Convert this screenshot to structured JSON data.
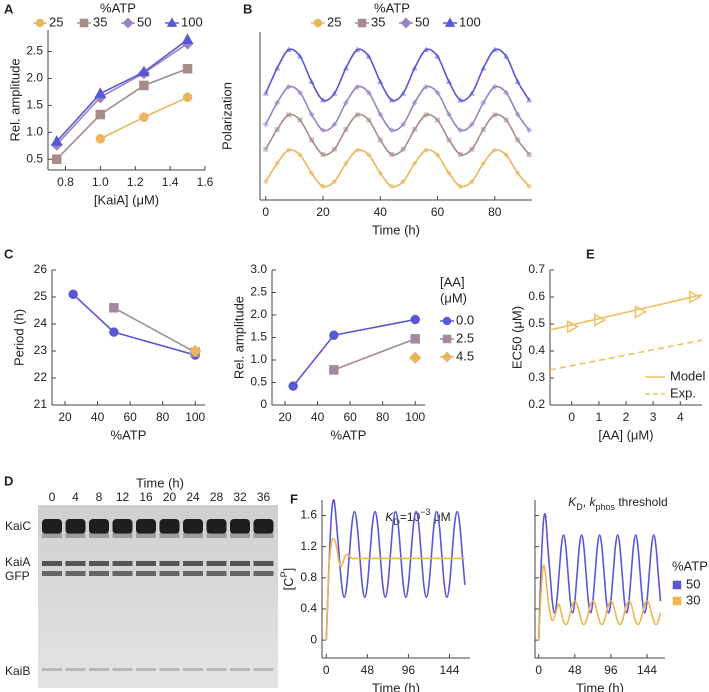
{
  "chart_data": [
    {
      "type": "line",
      "panel_label": "A",
      "xlabel": "[KaiA] (μM)",
      "ylabel": "Rel. amplitude",
      "xlim": [
        0.7,
        1.6
      ],
      "xticks": [
        0.8,
        {
          "value": 1,
          "label": "1.0"
        },
        1.2,
        1.4,
        1.6
      ],
      "ylim": [
        0.3,
        2.9
      ],
      "yticks": [
        0.5,
        {
          "value": 1,
          "label": "1.0"
        },
        1.5,
        {
          "value": 2,
          "label": "2.0"
        },
        2.5
      ],
      "legend": {
        "title": "%ATP",
        "position": "top"
      },
      "series": [
        {
          "name": "25",
          "color": "#e9b65d",
          "marker": "circle",
          "x": [
            1,
            1.25,
            1.5
          ],
          "values": [
            0.88,
            1.28,
            1.65
          ]
        },
        {
          "name": "35",
          "color": "#a88b8b",
          "marker": "square",
          "x": [
            0.75,
            1,
            1.25,
            1.5
          ],
          "values": [
            0.5,
            1.33,
            1.87,
            2.18
          ]
        },
        {
          "name": "50",
          "color": "#9a82c4",
          "marker": "diamond",
          "x": [
            0.75,
            1,
            1.25,
            1.5
          ],
          "values": [
            0.77,
            1.65,
            2.1,
            2.65
          ]
        },
        {
          "name": "100",
          "color": "#5a57d6",
          "marker": "triangle",
          "x": [
            0.75,
            1,
            1.25,
            1.5
          ],
          "values": [
            0.83,
            1.72,
            2.12,
            2.72
          ]
        }
      ]
    },
    {
      "type": "line",
      "panel_label": "B",
      "xlabel": "Time (h)",
      "ylabel": "Polarization",
      "smooth": true,
      "xlim": [
        -2,
        93
      ],
      "xticks": [
        0,
        20,
        40,
        60,
        80
      ],
      "ylim": [
        0.3,
        9.3
      ],
      "legend": {
        "title": "%ATP",
        "position": "top"
      },
      "x": [
        0,
        4,
        8,
        12,
        16,
        20,
        24,
        28,
        32,
        36,
        40,
        44,
        48,
        52,
        56,
        60,
        64,
        68,
        72,
        76,
        80,
        84,
        88,
        92
      ],
      "series": [
        {
          "name": "25",
          "color": "#e9b65d",
          "marker": "circle",
          "values": [
            1.29,
            2.26,
            2.97,
            2.71,
            1.74,
            1.03,
            1.29,
            2.26,
            2.97,
            2.71,
            1.74,
            1.03,
            1.29,
            2.26,
            2.97,
            2.71,
            1.74,
            1.03,
            1.29,
            2.26,
            2.97,
            2.71,
            1.74,
            1.03
          ]
        },
        {
          "name": "35",
          "color": "#a88b8b",
          "marker": "square",
          "values": [
            3.02,
            4.08,
            4.86,
            4.58,
            3.52,
            2.74,
            3.02,
            4.08,
            4.86,
            4.58,
            3.52,
            2.74,
            3.02,
            4.08,
            4.86,
            4.58,
            3.52,
            2.74,
            3.02,
            4.08,
            4.86,
            4.58,
            3.52,
            2.74
          ]
        },
        {
          "name": "50",
          "color": "#9a82c4",
          "marker": "diamond",
          "values": [
            4.35,
            5.51,
            6.36,
            6.05,
            4.89,
            4.04,
            4.35,
            5.51,
            6.36,
            6.05,
            4.89,
            4.04,
            4.35,
            5.51,
            6.36,
            6.05,
            4.89,
            4.04,
            4.35,
            5.51,
            6.36,
            6.05,
            4.89,
            4.04
          ]
        },
        {
          "name": "100",
          "color": "#5a57d6",
          "marker": "triangle",
          "values": [
            6.01,
            7.36,
            8.35,
            7.99,
            6.64,
            5.65,
            6.01,
            7.36,
            8.35,
            7.99,
            6.64,
            5.65,
            6.01,
            7.36,
            8.35,
            7.99,
            6.64,
            5.65,
            6.01,
            7.36,
            8.35,
            7.99,
            6.64,
            5.65
          ]
        }
      ]
    },
    {
      "type": "line",
      "panel_label": "C",
      "xlabel": "%ATP",
      "ylabel": "Period (h)",
      "xlim": [
        12,
        106
      ],
      "xticks": [
        20,
        40,
        60,
        80,
        100
      ],
      "ylim": [
        21,
        26
      ],
      "yticks": [
        21,
        22,
        23,
        24,
        25,
        26
      ],
      "series": [
        {
          "color": "#5a57d6",
          "marker": "circle",
          "x": [
            25,
            50,
            100
          ],
          "values": [
            25.1,
            23.7,
            22.85
          ]
        },
        {
          "color": "#a5899a",
          "marker": "square",
          "x": [
            50,
            100
          ],
          "values": [
            24.6,
            22.95
          ]
        },
        {
          "color": "#e9b65d",
          "marker": "diamond",
          "x": [
            100
          ],
          "values": [
            23.0
          ]
        }
      ]
    },
    {
      "type": "line",
      "xlabel": "%ATP",
      "ylabel": "Rel. amplitude",
      "xlim": [
        12,
        106
      ],
      "xticks": [
        20,
        40,
        60,
        80,
        100
      ],
      "ylim": [
        0,
        3
      ],
      "yticks": [
        0,
        0.5,
        {
          "value": 1,
          "label": "1.0"
        },
        1.5,
        {
          "value": 2,
          "label": "2.0"
        },
        2.5,
        {
          "value": 3,
          "label": "3.0"
        }
      ],
      "legend": {
        "title": [
          "[AA]",
          "(μM)"
        ],
        "position": "right"
      },
      "series": [
        {
          "name": "0.0",
          "color": "#5a57d6",
          "marker": "circle",
          "x": [
            25,
            50,
            100
          ],
          "values": [
            0.42,
            1.55,
            1.9
          ]
        },
        {
          "name": "2.5",
          "color": "#a5899a",
          "marker": "square",
          "x": [
            50,
            100
          ],
          "values": [
            0.78,
            1.47
          ]
        },
        {
          "name": "4.5",
          "color": "#e9b65d",
          "marker": "diamond",
          "x": [
            100
          ],
          "values": [
            1.05
          ]
        }
      ]
    },
    {
      "type": "line",
      "panel_label": "E",
      "xlabel": "[AA] (μM)",
      "ylabel": "EC50 (μM)",
      "xlim": [
        -0.8,
        4.8
      ],
      "xticks": [
        0,
        1,
        2,
        3,
        4
      ],
      "ylim": [
        0.2,
        0.7
      ],
      "yticks": [
        0.2,
        0.3,
        0.4,
        0.5,
        0.6,
        0.7
      ],
      "legend": {
        "position": "bottom-right"
      },
      "series": [
        {
          "name": "Model",
          "color": "#f0c060",
          "marker": "triangle-right",
          "marker_fill": "none",
          "x": [
            -0.8,
            4.8
          ],
          "values": [
            0.478,
            0.608
          ],
          "points": {
            "x": [
              0,
              1,
              2.5,
              4.5
            ],
            "values": [
              0.49,
              0.515,
              0.545,
              0.6
            ]
          }
        },
        {
          "name": "Exp.",
          "color": "#f0c060",
          "dash": true,
          "x": [
            -0.8,
            4.8
          ],
          "values": [
            0.33,
            0.44
          ]
        }
      ]
    },
    {
      "type": "line",
      "panel_label": "F",
      "xlabel": "Time (h)",
      "smooth": true,
      "ylabel_parts": [
        {
          "text": "[C"
        },
        {
          "text": "P",
          "style": "sup"
        },
        {
          "text": "]"
        }
      ],
      "title_parts": [
        {
          "text": "K",
          "style": "i"
        },
        {
          "text": "D",
          "style": "sub"
        },
        {
          "text": "=10"
        },
        {
          "text": "−3",
          "style": "sup"
        },
        {
          "text": " μM"
        }
      ],
      "xlim": [
        -5,
        168
      ],
      "xticks": [
        0,
        48,
        96,
        144
      ],
      "ylim": [
        -0.23,
        1.8
      ],
      "yticks": [
        0,
        0.4,
        0.8,
        1.2,
        1.6
      ],
      "x": [
        0,
        3,
        6,
        9,
        12,
        15,
        18,
        21,
        24,
        27,
        30,
        33,
        36,
        39,
        42,
        45,
        48,
        51,
        54,
        57,
        60,
        63,
        66,
        69,
        72,
        75,
        78,
        81,
        84,
        87,
        90,
        93,
        96,
        99,
        102,
        105,
        108,
        111,
        114,
        117,
        120,
        123,
        126,
        129,
        132,
        135,
        138,
        141,
        144,
        147,
        150,
        153,
        156,
        159,
        162
      ],
      "series": [
        {
          "color": "#5a57d6",
          "values": [
            0,
            0.9,
            1.6,
            1.8,
            1.49,
            1.1,
            0.71,
            0.55,
            0.71,
            1.1,
            1.49,
            1.65,
            1.49,
            1.1,
            0.71,
            0.55,
            0.71,
            1.1,
            1.49,
            1.65,
            1.49,
            1.1,
            0.71,
            0.55,
            0.71,
            1.1,
            1.49,
            1.65,
            1.49,
            1.1,
            0.71,
            0.55,
            0.71,
            1.1,
            1.49,
            1.65,
            1.49,
            1.1,
            0.71,
            0.55,
            0.71,
            1.1,
            1.49,
            1.65,
            1.49,
            1.1,
            0.71,
            0.55,
            0.71,
            1.1,
            1.49,
            1.65,
            1.49,
            1.1,
            0.71
          ]
        },
        {
          "color": "#f0b550",
          "values": [
            0,
            0.9,
            1.25,
            1.3,
            1.2,
            1.0,
            0.95,
            1.05,
            1.1,
            1.08,
            1.05,
            1.05,
            1.05,
            1.05,
            1.05,
            1.05,
            1.05,
            1.05,
            1.05,
            1.05,
            1.05,
            1.05,
            1.05,
            1.05,
            1.05,
            1.05,
            1.05,
            1.05,
            1.05,
            1.05,
            1.05,
            1.05,
            1.05,
            1.05,
            1.05,
            1.05,
            1.05,
            1.05,
            1.05,
            1.05,
            1.05,
            1.05,
            1.05,
            1.05,
            1.05,
            1.05,
            1.05,
            1.05,
            1.05,
            1.05,
            1.05,
            1.05,
            1.05,
            1.05,
            1.05
          ]
        }
      ]
    },
    {
      "type": "line",
      "xlabel": "Time (h)",
      "smooth": true,
      "show_ytick_labels": false,
      "title_parts": [
        {
          "text": "K",
          "style": "i"
        },
        {
          "text": "D",
          "style": "sub"
        },
        {
          "text": ", "
        },
        {
          "text": "k",
          "style": "i"
        },
        {
          "text": "phos",
          "style": "sub"
        },
        {
          "text": " threshold"
        }
      ],
      "xlim": [
        -5,
        168
      ],
      "xticks": [
        0,
        48,
        96,
        144
      ],
      "ylim": [
        -0.23,
        1.8
      ],
      "yticks": [
        0,
        0.4,
        0.8,
        1.2,
        1.6
      ],
      "legend": {
        "title": "%ATP",
        "position": "right",
        "marker": "square"
      },
      "x": [
        0,
        3,
        6,
        9,
        12,
        15,
        18,
        21,
        24,
        27,
        30,
        33,
        36,
        39,
        42,
        45,
        48,
        51,
        54,
        57,
        60,
        63,
        66,
        69,
        72,
        75,
        78,
        81,
        84,
        87,
        90,
        93,
        96,
        99,
        102,
        105,
        108,
        111,
        114,
        117,
        120,
        123,
        126,
        129,
        132,
        135,
        138,
        141,
        144,
        147,
        150,
        153,
        156,
        159,
        162
      ],
      "series": [
        {
          "name": "50",
          "color": "#5a57d6",
          "values": [
            0,
            0.9,
            1.5,
            1.6,
            1.2,
            0.85,
            0.5,
            0.35,
            0.5,
            0.85,
            1.2,
            1.35,
            1.2,
            0.85,
            0.5,
            0.35,
            0.5,
            0.85,
            1.2,
            1.35,
            1.2,
            0.85,
            0.5,
            0.35,
            0.5,
            0.85,
            1.2,
            1.35,
            1.2,
            0.85,
            0.5,
            0.35,
            0.5,
            0.85,
            1.2,
            1.35,
            1.2,
            0.85,
            0.5,
            0.35,
            0.5,
            0.85,
            1.2,
            1.35,
            1.2,
            0.85,
            0.5,
            0.35,
            0.5,
            0.85,
            1.2,
            1.35,
            1.2,
            0.85,
            0.5
          ]
        },
        {
          "name": "30",
          "color": "#f0b550",
          "values": [
            0,
            0.6,
            0.95,
            0.85,
            0.55,
            0.35,
            0.25,
            0.3,
            0.4,
            0.46,
            0.35,
            0.24,
            0.2,
            0.24,
            0.35,
            0.46,
            0.5,
            0.46,
            0.35,
            0.24,
            0.2,
            0.24,
            0.35,
            0.46,
            0.5,
            0.46,
            0.35,
            0.24,
            0.2,
            0.24,
            0.35,
            0.46,
            0.5,
            0.46,
            0.35,
            0.24,
            0.2,
            0.24,
            0.35,
            0.46,
            0.5,
            0.46,
            0.35,
            0.24,
            0.2,
            0.24,
            0.35,
            0.46,
            0.5,
            0.46,
            0.35,
            0.24,
            0.2,
            0.24,
            0.35
          ]
        }
      ]
    }
  ],
  "gel": {
    "panel_label": "D",
    "title": "Time (h)",
    "lanes": [
      0,
      4,
      8,
      12,
      16,
      20,
      24,
      28,
      32,
      36
    ],
    "bands": [
      "KaiC",
      "KaiA",
      "GFP",
      "KaiB"
    ]
  }
}
